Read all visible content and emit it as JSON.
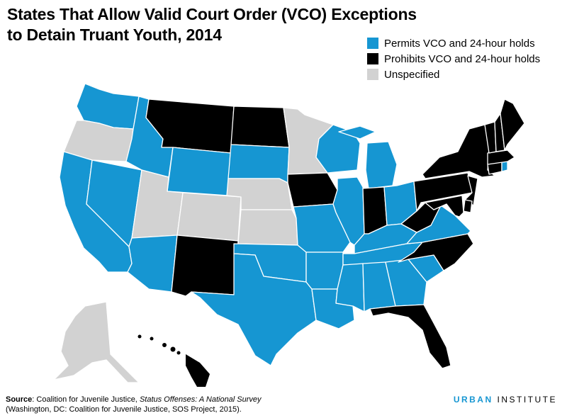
{
  "title": {
    "line1": "States That Allow Valid Court Order (VCO) Exceptions",
    "line2": "to Detain Truant Youth, 2014"
  },
  "legend": [
    {
      "key": "permits",
      "label": "Permits VCO and 24-hour holds",
      "color": "#1696d2"
    },
    {
      "key": "prohibits",
      "label": "Prohibits VCO and 24-hour holds",
      "color": "#000000"
    },
    {
      "key": "unspecified",
      "label": "Unspecified",
      "color": "#d2d2d2"
    }
  ],
  "map_data": {
    "states": {
      "WA": "permits",
      "OR": "unspecified",
      "CA": "permits",
      "NV": "permits",
      "ID": "permits",
      "MT": "prohibits",
      "WY": "permits",
      "UT": "unspecified",
      "AZ": "permits",
      "CO": "unspecified",
      "NM": "prohibits",
      "ND": "prohibits",
      "SD": "permits",
      "NE": "unspecified",
      "KS": "unspecified",
      "OK": "permits",
      "TX": "permits",
      "MN": "unspecified",
      "IA": "prohibits",
      "MO": "permits",
      "AR": "permits",
      "LA": "permits",
      "WI": "permits",
      "IL": "permits",
      "MI": "permits",
      "IN": "prohibits",
      "OH": "permits",
      "KY": "permits",
      "TN": "permits",
      "MS": "permits",
      "AL": "permits",
      "GA": "permits",
      "FL": "prohibits",
      "SC": "permits",
      "NC": "prohibits",
      "VA": "permits",
      "WV": "prohibits",
      "PA": "prohibits",
      "NY": "prohibits",
      "VT": "prohibits",
      "NH": "prohibits",
      "ME": "prohibits",
      "MA": "prohibits",
      "RI": "permits",
      "CT": "prohibits",
      "NJ": "prohibits",
      "DE": "prohibits",
      "MD": "prohibits",
      "AK": "unspecified",
      "HI": "prohibits"
    }
  },
  "footer": {
    "source_label": "Source",
    "source_text_1": ": Coalition for Juvenile Justice, ",
    "source_italic": "Status Offenses: A National Survey",
    "source_text_2": " (Washington, DC: Coalition for Juvenile Justice, SOS Project, 2015)."
  },
  "brand": {
    "part1": "URBAN",
    "part2": " INSTITUTE"
  }
}
